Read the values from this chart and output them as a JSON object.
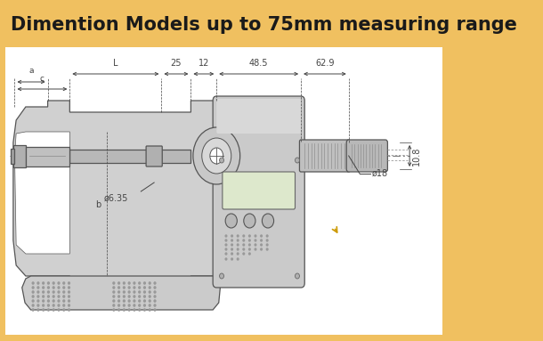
{
  "title": "Dimention Models up to 75mm measuring range",
  "title_bg": "#f0c060",
  "title_color": "#1a1a1a",
  "outer_bg": "#f0c060",
  "inner_bg": "#ffffff",
  "dim_labels": {
    "a": "a",
    "c": "c",
    "L": "L",
    "d25": "25",
    "d12": "12",
    "d485": "48.5",
    "d629": "62.9",
    "b": "b",
    "phi635": "ø6.35",
    "phi18": "ø18",
    "d108": "10.8"
  },
  "ann_color": "#444444",
  "ann_fs": 7.0,
  "body_fill": "#d0d0d0",
  "body_edge": "#555555",
  "body_fill2": "#c0c0c0",
  "spindle_fill": "#b8b8b8",
  "thimble_fill": "#c8c8c8",
  "display_fill": "#d8d8c8",
  "grip_fill": "#c8c8c8",
  "lw": 0.9
}
